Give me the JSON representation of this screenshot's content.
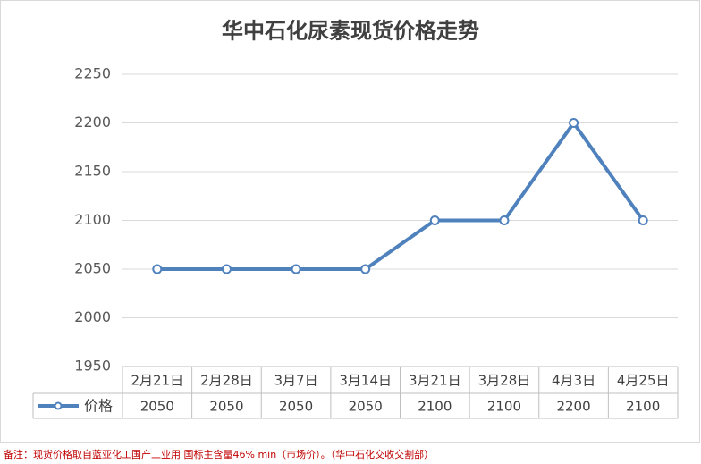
{
  "chart_data": {
    "type": "line",
    "title": "华中石化尿素现货价格走势",
    "categories": [
      "2月21日",
      "2月28日",
      "3月7日",
      "3月14日",
      "3月21日",
      "3月28日",
      "4月3日",
      "4月25日"
    ],
    "series": [
      {
        "name": "价格",
        "color": "#4f81bd",
        "values": [
          2050,
          2050,
          2050,
          2050,
          2100,
          2100,
          2200,
          2100
        ]
      }
    ],
    "ylim": [
      1950,
      2250
    ],
    "yticks": [
      1950,
      2000,
      2050,
      2100,
      2150,
      2200,
      2250
    ],
    "grid": true
  },
  "note": "备注：现货价格取自蓝亚化工国产工业用 国标主含量46% min（市场价）。（华中石化交收交割部）"
}
